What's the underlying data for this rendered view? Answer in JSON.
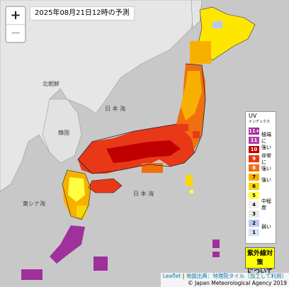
{
  "title": "2025年08月21日12時の予測",
  "zoom": {
    "in": "+",
    "out": "−"
  },
  "place_labels": [
    {
      "text": "日 本 海"
    },
    {
      "text": "日 本 海"
    },
    {
      "text": "東シナ海"
    },
    {
      "text": "北朝鮮"
    },
    {
      "text": "韓国"
    }
  ],
  "legend": {
    "title": "UV",
    "subtitle": "インデックス",
    "levels": [
      {
        "label": "11+",
        "color": "#a0309c",
        "text": "#ffffff"
      },
      {
        "label": "11",
        "color": "#b03ca8",
        "text": "#ffffff"
      },
      {
        "label": "10",
        "color": "#c00000",
        "text": "#ffffff"
      },
      {
        "label": "9",
        "color": "#e83818",
        "text": "#ffffff"
      },
      {
        "label": "8",
        "color": "#f07010",
        "text": "#ffffff"
      },
      {
        "label": "7",
        "color": "#f8b000",
        "text": "#000000"
      },
      {
        "label": "6",
        "color": "#f8d800",
        "text": "#000000"
      },
      {
        "label": "5",
        "color": "#ffff40",
        "text": "#000000"
      },
      {
        "label": "4",
        "color": "#f0f0f0",
        "text": "#000000"
      },
      {
        "label": "3",
        "color": "#e8e8e8",
        "text": "#000000"
      },
      {
        "label": "2",
        "color": "#b8c8f0",
        "text": "#000000"
      },
      {
        "label": "1",
        "color": "#d8e0f8",
        "text": "#000000"
      }
    ],
    "groups": [
      {
        "text": "極端に\n強い"
      },
      {
        "text": "非常に\n強い"
      },
      {
        "text": "強い"
      },
      {
        "text": "中程度"
      },
      {
        "text": "弱い"
      }
    ]
  },
  "info_button": "紫外線対策\nについて",
  "attribution": {
    "leaflet": "Leaflet",
    "sep": " | ",
    "gsi": "地図出典：地理院タイル（加工して利用）",
    "jma": "© Japan Meteorological Agency 2019"
  }
}
